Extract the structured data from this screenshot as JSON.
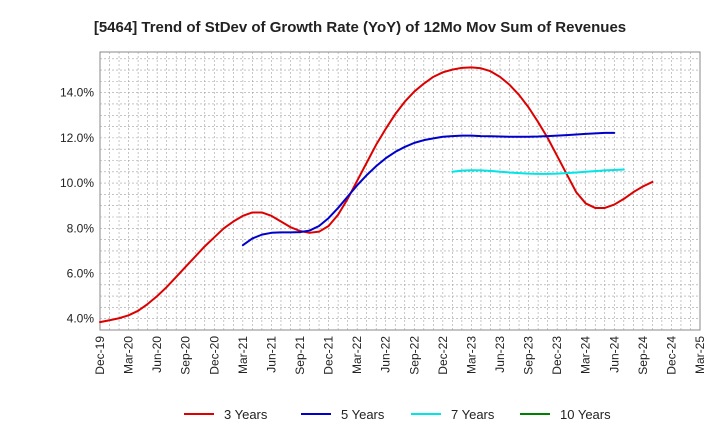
{
  "chart_data": {
    "type": "line",
    "title": "[5464]  Trend of StDev of Growth Rate (YoY) of 12Mo Mov Sum of Revenues",
    "xlabel": "",
    "ylabel": "",
    "ylim": [
      3.5,
      15.8
    ],
    "yticks": [
      4.0,
      6.0,
      8.0,
      10.0,
      12.0,
      14.0
    ],
    "ytick_labels": [
      "4.0%",
      "6.0%",
      "8.0%",
      "10.0%",
      "12.0%",
      "14.0%"
    ],
    "x_tick_labels": [
      "Dec-19",
      "Mar-20",
      "Jun-20",
      "Sep-20",
      "Dec-20",
      "Mar-21",
      "Jun-21",
      "Sep-21",
      "Dec-21",
      "Mar-22",
      "Jun-22",
      "Sep-22",
      "Dec-22",
      "Mar-23",
      "Jun-23",
      "Sep-23",
      "Dec-23",
      "Mar-24",
      "Jun-24",
      "Sep-24",
      "Dec-24",
      "Mar-25"
    ],
    "grid": true,
    "legend_position": "bottom",
    "series": [
      {
        "name": "3 Years",
        "color": "#dd0000",
        "start_index": 0,
        "values": [
          3.85,
          3.93,
          4.02,
          4.15,
          4.35,
          4.65,
          5.0,
          5.4,
          5.85,
          6.3,
          6.75,
          7.2,
          7.6,
          8.0,
          8.3,
          8.55,
          8.7,
          8.7,
          8.55,
          8.3,
          8.05,
          7.88,
          7.8,
          7.85,
          8.1,
          8.6,
          9.3,
          10.1,
          10.9,
          11.7,
          12.4,
          13.05,
          13.6,
          14.05,
          14.4,
          14.7,
          14.9,
          15.02,
          15.1,
          15.12,
          15.08,
          14.95,
          14.7,
          14.35,
          13.9,
          13.35,
          12.7,
          12.0,
          11.2,
          10.4,
          9.6,
          9.1,
          8.9,
          8.9,
          9.05,
          9.3,
          9.6,
          9.85,
          10.05
        ]
      },
      {
        "name": "5 Years",
        "color": "#0000cc",
        "start_index": 15,
        "values": [
          7.25,
          7.55,
          7.72,
          7.8,
          7.82,
          7.82,
          7.83,
          7.9,
          8.1,
          8.45,
          8.9,
          9.4,
          9.9,
          10.35,
          10.75,
          11.1,
          11.38,
          11.6,
          11.78,
          11.9,
          11.98,
          12.05,
          12.08,
          12.1,
          12.1,
          12.08,
          12.07,
          12.06,
          12.05,
          12.05,
          12.05,
          12.06,
          12.08,
          12.1,
          12.12,
          12.15,
          12.18,
          12.2,
          12.22,
          12.22
        ]
      },
      {
        "name": "7 Years",
        "color": "#00e5e5",
        "start_index": 37,
        "values": [
          10.5,
          10.55,
          10.57,
          10.56,
          10.54,
          10.5,
          10.47,
          10.44,
          10.42,
          10.41,
          10.41,
          10.42,
          10.44,
          10.47,
          10.5,
          10.53,
          10.56,
          10.58,
          10.6
        ]
      },
      {
        "name": "10 Years",
        "color": "#008000",
        "start_index": 0,
        "values": []
      }
    ]
  }
}
